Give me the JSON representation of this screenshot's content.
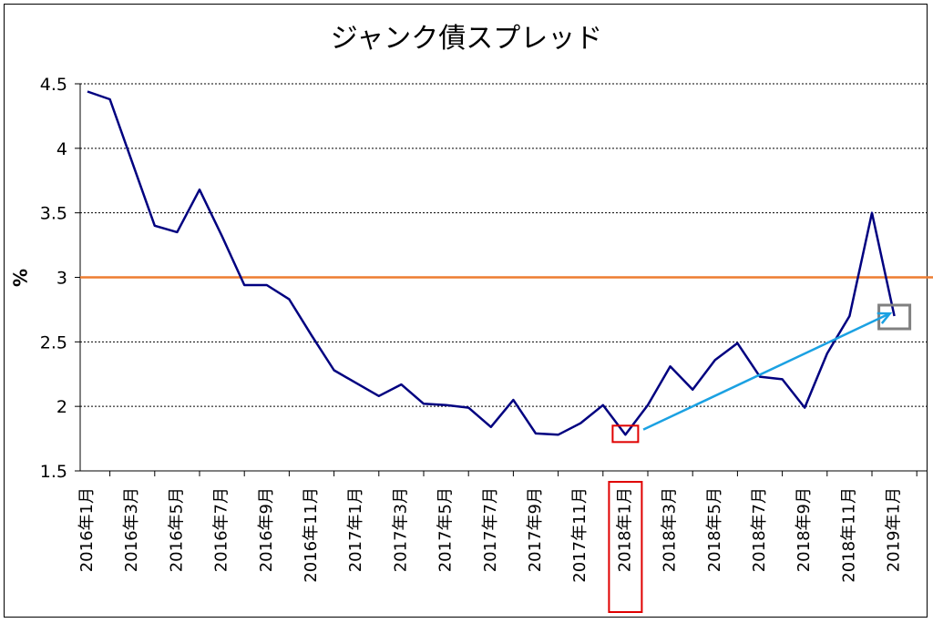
{
  "chart_data": {
    "type": "line",
    "title": "ジャンク債スプレッド",
    "ylabel": "%",
    "xlabel": "",
    "ylim": [
      1.5,
      4.5
    ],
    "y_ticks": [
      "1.5",
      "2",
      "2.5",
      "3",
      "3.5",
      "4",
      "4.5"
    ],
    "grid": true,
    "x_tick_labels": [
      "2016年1月",
      "2016年3月",
      "2016年5月",
      "2016年7月",
      "2016年9月",
      "2016年11月",
      "2017年1月",
      "2017年3月",
      "2017年5月",
      "2017年7月",
      "2017年9月",
      "2017年11月",
      "2018年1月",
      "2018年3月",
      "2018年5月",
      "2018年7月",
      "2018年9月",
      "2018年11月",
      "2019年1月"
    ],
    "series": [
      {
        "color": "#000080",
        "x": [
          0,
          0.5,
          1,
          1.5,
          2,
          2.5,
          3,
          3.5,
          4,
          4.5,
          5,
          5.5,
          6,
          6.5,
          7,
          7.5,
          8,
          8.5,
          9,
          9.5,
          10,
          10.5,
          11,
          11.5,
          12,
          12.5,
          13,
          13.5,
          14,
          14.5,
          15,
          15.5,
          16,
          16.5,
          17,
          17.5,
          18
        ],
        "values": [
          4.44,
          4.38,
          3.89,
          3.4,
          3.35,
          3.68,
          3.32,
          2.94,
          2.94,
          2.83,
          2.55,
          2.28,
          2.18,
          2.08,
          2.17,
          2.02,
          2.01,
          1.99,
          1.84,
          2.05,
          1.79,
          1.78,
          1.87,
          2.01,
          1.78,
          2.01,
          2.31,
          2.13,
          2.36,
          2.49,
          2.23,
          2.21,
          1.99,
          2.41,
          2.7,
          3.5,
          2.7
        ]
      }
    ],
    "reference_line": {
      "value": 3.0,
      "color": "#ED7D31"
    },
    "annotations": {
      "red_box": {
        "x": 12,
        "y": 1.78,
        "color": "#E00000"
      },
      "gray_box": {
        "x": 18,
        "y": 2.7,
        "color": "#808080"
      },
      "arrow": {
        "from": [
          12.4,
          1.82
        ],
        "to": [
          17.9,
          2.72
        ],
        "color": "#1BA1E2"
      },
      "highlighted_tick_index": 12
    }
  }
}
